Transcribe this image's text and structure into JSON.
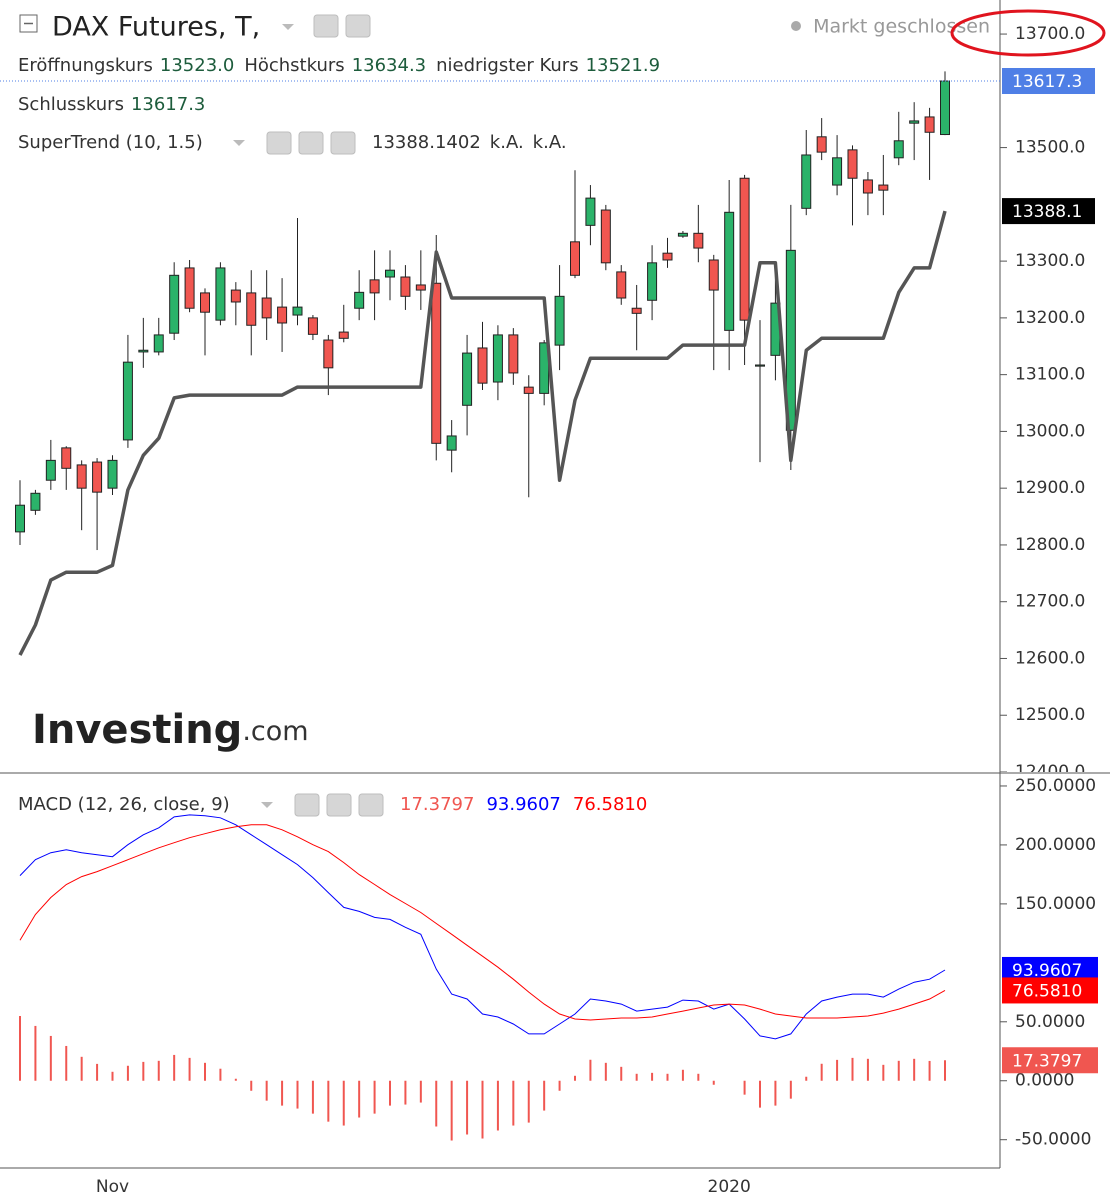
{
  "chart_data": [
    {
      "type": "candlestick",
      "title": "DAX Futures, T,",
      "status": "Markt geschlossen",
      "ohlc_legend": [
        {
          "label": "Eröffnungskurs",
          "value": "13523.0"
        },
        {
          "label": "Höchstkurs",
          "value": "13634.3"
        },
        {
          "label": "niedrigster Kurs",
          "value": "13521.9"
        },
        {
          "label": "Schlusskurs",
          "value": "13617.3"
        }
      ],
      "watermark": [
        "Investing",
        ".com"
      ],
      "categories": [
        null,
        null,
        null,
        null,
        null,
        null,
        "Nov",
        null,
        null,
        null,
        null,
        null,
        null,
        null,
        null,
        null,
        null,
        null,
        null,
        null,
        null,
        null,
        null,
        null,
        null,
        null,
        null,
        null,
        null,
        null,
        null,
        null,
        null,
        null,
        null,
        null,
        null,
        null,
        null,
        null,
        null,
        null,
        null,
        null,
        null,
        null,
        "2020",
        null,
        null,
        null,
        null,
        null,
        null,
        null,
        null,
        null,
        null,
        null,
        null,
        null,
        null
      ],
      "open": [
        12823,
        12861,
        12914,
        12971,
        12941,
        12946,
        12900,
        12985,
        13140,
        13140,
        13173,
        13288,
        13244,
        13196,
        13249,
        13244,
        13235,
        13219,
        13205,
        13200,
        13161,
        13175,
        13217,
        13267,
        13272,
        13272,
        13258,
        13261,
        12967,
        13046,
        13147,
        13087,
        13170,
        13078,
        13067,
        13152,
        13334,
        13363,
        13390,
        13281,
        13217,
        13231,
        13314,
        13344,
        13349,
        13302,
        13178,
        13446,
        13115,
        13134,
        13002,
        13393,
        13519,
        13434,
        13496,
        13443,
        13434,
        13482,
        13543,
        13554,
        13523
      ],
      "high": [
        12914,
        12897,
        12985,
        12974,
        12949,
        12953,
        12958,
        13170,
        13200,
        13200,
        13298,
        13302,
        13252,
        13298,
        13263,
        13284,
        13284,
        13270,
        13376,
        13205,
        13170,
        13223,
        13284,
        13319,
        13319,
        13293,
        13319,
        13346,
        13020,
        13170,
        13193,
        13187,
        13182,
        13099,
        13161,
        13293,
        13460,
        13434,
        13399,
        13293,
        13258,
        13328,
        13341,
        13353,
        13399,
        13311,
        13443,
        13452,
        13196,
        13284,
        13399,
        13531,
        13552,
        13522,
        13504,
        13457,
        13487,
        13563,
        13580,
        13570,
        13634.3
      ],
      "low": [
        12800,
        12853,
        12897,
        12897,
        12826,
        12791,
        12888,
        12971,
        13112,
        13134,
        13161,
        13210,
        13134,
        13187,
        13187,
        13134,
        13161,
        13140,
        13187,
        13161,
        13064,
        13157,
        13196,
        13196,
        13231,
        13214,
        13214,
        12949,
        12928,
        12993,
        13073,
        13055,
        13082,
        12884,
        13046,
        13108,
        13270,
        13328,
        13284,
        13223,
        13143,
        13196,
        13288,
        13341,
        13298,
        13108,
        13108,
        13117,
        12946,
        13090,
        12932,
        13381,
        13478,
        13416,
        13363,
        13381,
        13381,
        13469,
        13478,
        13443,
        13521.9
      ],
      "close": [
        12870,
        12891,
        12949,
        12935,
        12900,
        12893,
        12949,
        13122,
        13143,
        13170,
        13275,
        13217,
        13210,
        13288,
        13228,
        13187,
        13200,
        13191,
        13219,
        13171,
        13112,
        13164,
        13245,
        13244,
        13284,
        13238,
        13249,
        12979,
        12992,
        13138,
        13085,
        13170,
        13103,
        13067,
        13156,
        13238,
        13275,
        13411,
        13297,
        13235,
        13208,
        13297,
        13302,
        13349,
        13323,
        13249,
        13386,
        13196,
        13117,
        13226,
        13319,
        13487,
        13492,
        13482,
        13446,
        13420,
        13425,
        13512,
        13547,
        13527,
        13617.3
      ],
      "up_color": "#2bb36a",
      "down_color": "#f05650",
      "price_line_color": "#4f7fe6",
      "series": [
        {
          "name": "SuperTrend (10, 1.5)",
          "color": "#555555",
          "tag_color": "#000000",
          "legend_values": [
            "13388.1402",
            "k.A.",
            "k.A."
          ],
          "last_label": "13388.1",
          "values": [
            12606,
            12659,
            12738,
            12752,
            12752,
            12752,
            12764,
            12897,
            12958,
            12988,
            13059,
            13064,
            13064,
            13064,
            13064,
            13064,
            13064,
            13064,
            13078,
            13078,
            13078,
            13078,
            13078,
            13078,
            13078,
            13078,
            13078,
            13316,
            13235,
            13235,
            13235,
            13235,
            13235,
            13235,
            13235,
            12914,
            13055,
            13129,
            13129,
            13129,
            13129,
            13129,
            13129,
            13152,
            13152,
            13152,
            13152,
            13152,
            13297,
            13297,
            12949,
            13143,
            13164,
            13164,
            13164,
            13164,
            13164,
            13245,
            13288,
            13288,
            13388.1402
          ]
        }
      ],
      "ylim": [
        12400,
        13760
      ],
      "yticks": [
        {
          "value": 13700,
          "label": "13700.0"
        },
        {
          "value": 13500,
          "label": "13500.0"
        },
        {
          "value": 13300,
          "label": "13300.0"
        },
        {
          "value": 13200,
          "label": "13200.0"
        },
        {
          "value": 13100,
          "label": "13100.0"
        },
        {
          "value": 13000,
          "label": "13000.0"
        },
        {
          "value": 12900,
          "label": "12900.0"
        },
        {
          "value": 12800,
          "label": "12800.0"
        },
        {
          "value": 12700,
          "label": "12700.0"
        },
        {
          "value": 12600,
          "label": "12600.0"
        },
        {
          "value": 12500,
          "label": "12500.0"
        },
        {
          "value": 12400,
          "label": "12400.0"
        }
      ]
    },
    {
      "type": "macd",
      "title": "MACD (12, 26, close, 9)",
      "series": [
        {
          "style": "histogram",
          "color": "#f05650",
          "last_label": "17.3797",
          "values": [
            54.9,
            46.5,
            38.0,
            29.5,
            20.3,
            14.3,
            7.6,
            12.7,
            16.0,
            16.9,
            21.9,
            19.4,
            15.2,
            10.2,
            1.7,
            -8.5,
            -16.9,
            -21.1,
            -23.6,
            -27.9,
            -34.7,
            -38.0,
            -31.2,
            -27.9,
            -21.1,
            -20.2,
            -18.5,
            -38.8,
            -50.7,
            -45.6,
            -49.0,
            -42.2,
            -38.0,
            -35.5,
            -25.3,
            -8.5,
            4.2,
            17.8,
            15.2,
            11.8,
            5.9,
            6.7,
            5.9,
            9.3,
            5.9,
            -3.4,
            0,
            -11.8,
            -22.8,
            -21.1,
            -15.2,
            3.4,
            14.4,
            17.7,
            19.4,
            18.6,
            13.5,
            16.9,
            18.6,
            16.8,
            17.3797
          ]
        },
        {
          "style": "line",
          "color": "#0000ff",
          "last_label": "93.9607",
          "values": [
            174.0,
            187.5,
            193.4,
            195.9,
            193.4,
            191.7,
            190.0,
            200.2,
            208.6,
            214.5,
            223.8,
            225.5,
            224.7,
            223.0,
            217.1,
            208.6,
            200.2,
            191.7,
            183.3,
            172.3,
            159.6,
            147.0,
            143.6,
            138.5,
            136.8,
            130.1,
            124.2,
            94.6,
            73.5,
            69.3,
            56.6,
            54.1,
            48.1,
            39.7,
            39.7,
            48.1,
            56.6,
            69.3,
            67.6,
            65.0,
            59.1,
            60.8,
            62.5,
            68.4,
            67.6,
            60.8,
            65.0,
            52.4,
            38.0,
            35.5,
            39.7,
            56.6,
            67.6,
            70.9,
            73.5,
            73.5,
            70.9,
            77.7,
            83.6,
            86.1,
            93.9607
          ]
        },
        {
          "style": "line",
          "color": "#ff0000",
          "last_label": "76.5810",
          "values": [
            119.1,
            141.0,
            155.4,
            166.4,
            173.1,
            177.4,
            182.4,
            187.5,
            192.6,
            197.6,
            201.9,
            206.1,
            209.5,
            212.8,
            215.4,
            217.1,
            217.1,
            212.8,
            206.9,
            200.2,
            194.3,
            185.0,
            174.8,
            166.4,
            157.9,
            150.3,
            142.7,
            133.4,
            124.2,
            114.9,
            105.6,
            96.3,
            86.1,
            75.2,
            65.0,
            56.6,
            52.4,
            51.5,
            52.4,
            53.2,
            53.2,
            54.1,
            56.6,
            59.1,
            61.7,
            64.2,
            65.0,
            64.2,
            60.8,
            56.6,
            54.9,
            53.2,
            53.2,
            53.2,
            54.1,
            54.9,
            57.4,
            60.8,
            65.0,
            69.3,
            76.581
          ]
        }
      ],
      "ylim": [
        -74,
        261
      ],
      "yticks": [
        {
          "value": 250,
          "label": "250.0000"
        },
        {
          "value": 200,
          "label": "200.0000"
        },
        {
          "value": 150,
          "label": "150.0000"
        },
        {
          "value": 50,
          "label": "50.0000"
        },
        {
          "value": 0,
          "label": "0.0000"
        },
        {
          "value": -50,
          "label": "-50.0000"
        }
      ]
    }
  ]
}
